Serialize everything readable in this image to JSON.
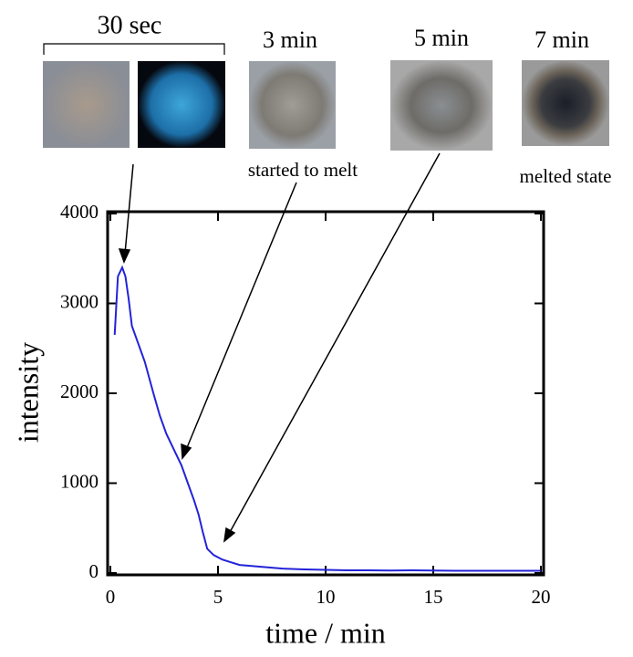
{
  "chart_data": {
    "type": "line",
    "annotations": [
      "30 sec",
      "3 min",
      "5 min",
      "7 min",
      "started to melt",
      "melted state"
    ],
    "x_label": "time / min",
    "y_label": "intensity",
    "series": [
      {
        "color": "#2323d8",
        "x": [
          0.2,
          0.35,
          0.55,
          0.7,
          0.85,
          1.0,
          1.3,
          1.6,
          2.0,
          2.3,
          2.6,
          3.0,
          3.3,
          3.6,
          3.9,
          4.1,
          4.3,
          4.5,
          4.8,
          5.2,
          5.6,
          6.0,
          7.0,
          8.0,
          9.0,
          10.0,
          11.0,
          12.0,
          13.0,
          14.0,
          15.0,
          16.0,
          17.0,
          18.0,
          19.0,
          20.0
        ],
        "values": [
          2650,
          3300,
          3400,
          3300,
          3050,
          2750,
          2550,
          2350,
          2000,
          1750,
          1550,
          1350,
          1200,
          1000,
          800,
          650,
          450,
          270,
          200,
          150,
          120,
          90,
          70,
          50,
          40,
          35,
          30,
          30,
          28,
          30,
          28,
          25,
          25,
          25,
          25,
          25
        ]
      }
    ],
    "xlim": [
      0,
      20
    ],
    "xticks": [
      0,
      5,
      10,
      15,
      20
    ],
    "ylim": [
      0,
      4000
    ],
    "yticks": [
      0,
      1000,
      2000,
      3000,
      4000
    ]
  }
}
